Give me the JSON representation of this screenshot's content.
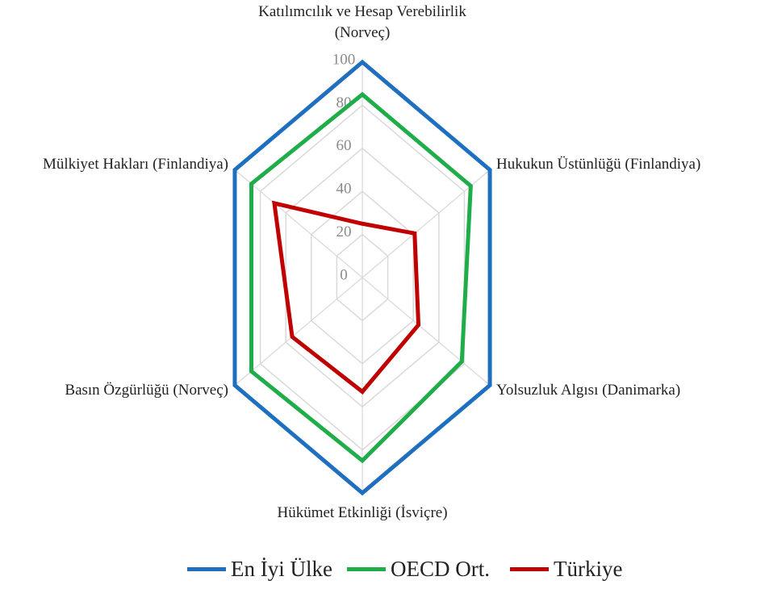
{
  "chart_data": {
    "type": "radar",
    "categories": [
      "Katılımcılık ve Hesap Verebilirlik (Norveç)",
      "Hukukun Üstünlüğü (Finlandiya)",
      "Yolsuzluk Algısı (Danimarka)",
      "Hükümet Etkinliği (İsviçre)",
      "Basın Özgürlüğü (Norveç)",
      "Mülkiyet Hakları (Finlandiya)"
    ],
    "series": [
      {
        "name": "En İyi Ülke",
        "color": "#1f6fc0",
        "values": [
          100,
          100,
          100,
          100,
          100,
          100
        ]
      },
      {
        "name": "OECD Ort.",
        "color": "#1fad4a",
        "values": [
          85,
          85,
          78,
          85,
          87,
          87
        ]
      },
      {
        "name": "Türkiye",
        "color": "#c00000",
        "values": [
          25,
          41,
          44,
          53,
          55,
          69
        ]
      }
    ],
    "ylim": [
      0,
      100
    ],
    "yticks": [
      0,
      20,
      40,
      60,
      80,
      100
    ],
    "grid": true,
    "legend": "bottom"
  }
}
